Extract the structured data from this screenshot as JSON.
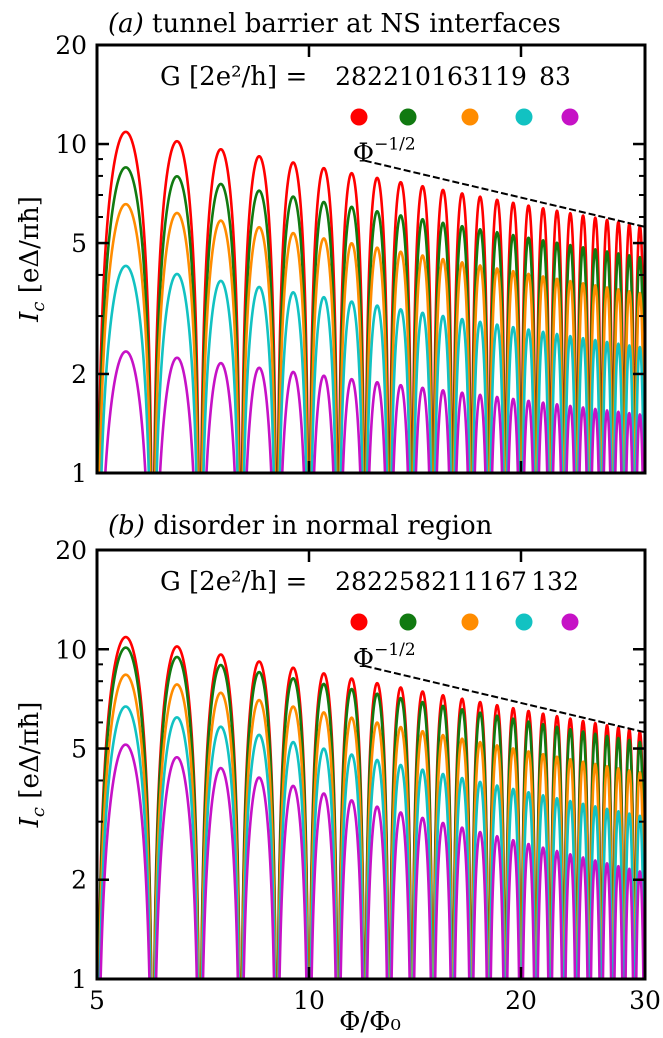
{
  "chart_data": [
    {
      "type": "line",
      "panel_label": "(a)",
      "title": "tunnel barrier at NS interfaces",
      "xlabel": "Φ/Φ₀",
      "ylabel_var": "I",
      "ylabel_sub": "c",
      "ylabel_unit": "[eΔ/πħ]",
      "xscale": "log",
      "yscale": "log",
      "xlim": [
        5,
        30
      ],
      "ylim": [
        1,
        20
      ],
      "xticks": [
        5,
        10,
        20,
        30
      ],
      "xtick_labels": [
        "",
        "",
        "",
        ""
      ],
      "yticks": [
        1,
        2,
        5,
        10,
        20
      ],
      "ytick_labels": [
        "1",
        "2",
        "5",
        "10",
        "20"
      ],
      "legend_title": "G [2e²/h] =",
      "legend_placement": "top",
      "series": [
        {
          "name": "282",
          "color": "#ff0000",
          "peak_start": 11.3,
          "peak_end": 5.6,
          "zero_floor": 1.0
        },
        {
          "name": "210",
          "color": "#117a11",
          "peak_start": 8.8,
          "peak_end": 4.5,
          "zero_floor": 1.0
        },
        {
          "name": "163",
          "color": "#ff8c00",
          "peak_start": 6.8,
          "peak_end": 3.5,
          "zero_floor": 1.0
        },
        {
          "name": "119",
          "color": "#12c2c2",
          "peak_start": 4.4,
          "peak_end": 2.4,
          "zero_floor": 1.0
        },
        {
          "name": "83",
          "color": "#c612c6",
          "peak_start": 2.4,
          "peak_end": 1.5,
          "zero_floor": 1.0
        }
      ],
      "annotation": {
        "text": "Φ",
        "exp": "−1/2",
        "x": [
          12,
          30
        ],
        "y": [
          8.9,
          5.6
        ]
      }
    },
    {
      "type": "line",
      "panel_label": "(b)",
      "title": "disorder in normal region",
      "xlabel": "Φ/Φ₀",
      "ylabel_var": "I",
      "ylabel_sub": "c",
      "ylabel_unit": "[eΔ/πħ]",
      "xscale": "log",
      "yscale": "log",
      "xlim": [
        5,
        30
      ],
      "ylim": [
        1,
        20
      ],
      "xticks": [
        5,
        10,
        20,
        30
      ],
      "xtick_labels": [
        "5",
        "10",
        "20",
        "30"
      ],
      "yticks": [
        1,
        2,
        5,
        10,
        20
      ],
      "ytick_labels": [
        "1",
        "2",
        "5",
        "10",
        "20"
      ],
      "legend_title": "G [2e²/h] =",
      "legend_placement": "top",
      "series": [
        {
          "name": "282",
          "color": "#ff0000",
          "peak_start": 11.3,
          "peak_end": 5.6,
          "zero_floor": 1.0
        },
        {
          "name": "258",
          "color": "#117a11",
          "peak_start": 10.5,
          "peak_end": 5.2,
          "zero_floor": 1.0
        },
        {
          "name": "211",
          "color": "#ff8c00",
          "peak_start": 8.7,
          "peak_end": 4.2,
          "zero_floor": 1.0
        },
        {
          "name": "167",
          "color": "#12c2c2",
          "peak_start": 7.0,
          "peak_end": 3.1,
          "zero_floor": 1.0
        },
        {
          "name": "132",
          "color": "#c612c6",
          "peak_start": 5.4,
          "peak_end": 2.1,
          "zero_floor": 1.0
        }
      ],
      "annotation": {
        "text": "Φ",
        "exp": "−1/2",
        "x": [
          12,
          30
        ],
        "y": [
          8.9,
          5.6
        ]
      }
    }
  ]
}
